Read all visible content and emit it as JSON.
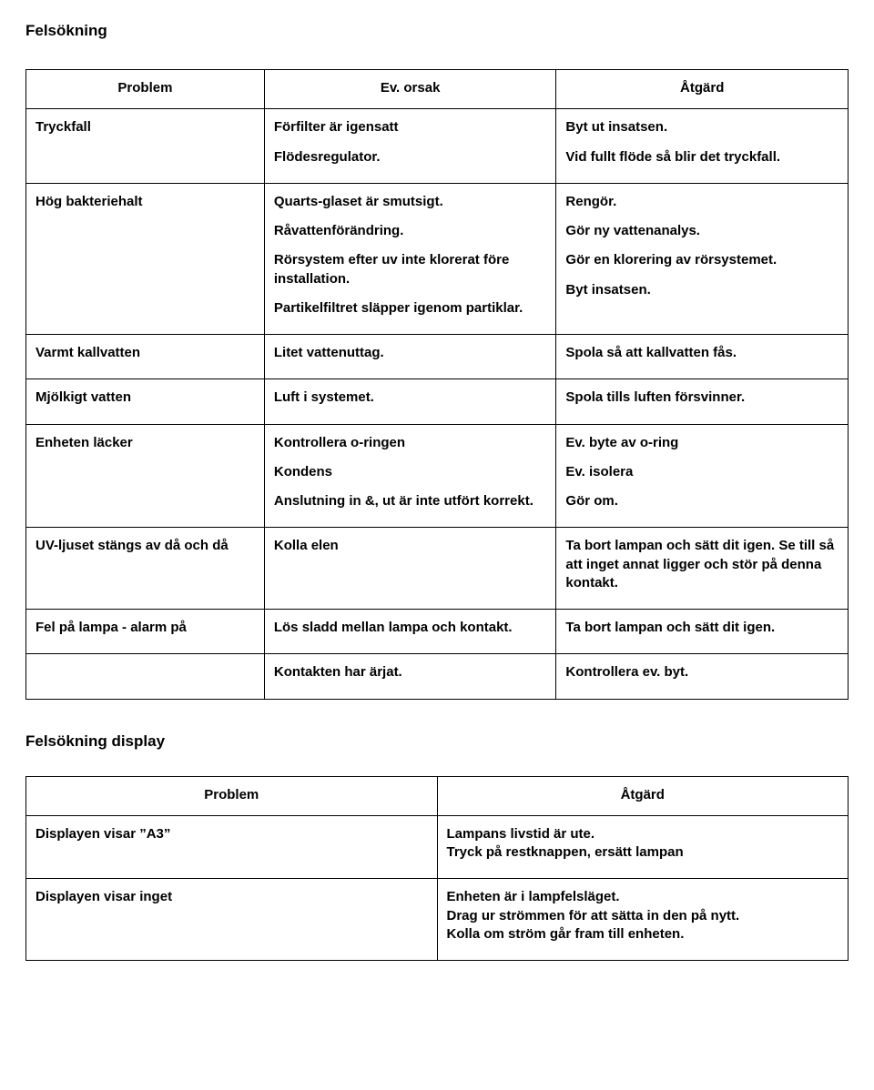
{
  "heading1": "Felsökning",
  "heading2": "Felsökning display",
  "table1": {
    "headers": {
      "problem": "Problem",
      "cause": "Ev. orsak",
      "action": "Åtgärd"
    },
    "rows": [
      {
        "problem": "Tryckfall",
        "cells": [
          {
            "cause": "Förfilter är igensatt",
            "action": "Byt ut insatsen."
          },
          {
            "cause": "Flödesregulator.",
            "action": "Vid fullt flöde så blir det tryckfall."
          }
        ]
      },
      {
        "problem": "Hög bakteriehalt",
        "cells": [
          {
            "cause": "Quarts-glaset är smutsigt.",
            "action": "Rengör."
          },
          {
            "cause": "Råvattenförändring.",
            "action": "Gör ny vattenanalys."
          },
          {
            "cause": "Rörsystem efter uv inte klorerat före installation.",
            "action": "Gör en klorering av rörsystemet."
          },
          {
            "cause": "Partikelfiltret släpper igenom partiklar.",
            "action": "Byt insatsen."
          }
        ]
      },
      {
        "problem": "Varmt kallvatten",
        "cells": [
          {
            "cause": "Litet vattenuttag.",
            "action": "Spola så att kallvatten fås."
          }
        ]
      },
      {
        "problem": "Mjölkigt vatten",
        "cells": [
          {
            "cause": "Luft i systemet.",
            "action": "Spola tills luften försvinner."
          }
        ]
      },
      {
        "problem": "Enheten läcker",
        "cells": [
          {
            "cause": "Kontrollera o-ringen",
            "action": "Ev. byte av o-ring"
          },
          {
            "cause": "Kondens",
            "action": "Ev. isolera"
          },
          {
            "cause": "Anslutning in &, ut är inte utfört korrekt.",
            "action": "Gör om."
          }
        ]
      },
      {
        "problem": "UV-ljuset stängs av då och då",
        "cells": [
          {
            "cause": "Kolla elen",
            "action": "Ta bort lampan och sätt dit igen. Se till så att inget annat ligger och stör på denna kontakt."
          }
        ]
      },
      {
        "problem": "Fel på lampa - alarm på",
        "cells": [
          {
            "cause": "Lös sladd mellan lampa och kontakt.",
            "action": "Ta bort lampan och sätt dit igen."
          }
        ]
      },
      {
        "problem": "",
        "cells": [
          {
            "cause": "Kontakten har ärjat.",
            "action": "Kontrollera ev. byt."
          }
        ]
      }
    ]
  },
  "table2": {
    "headers": {
      "problem": "Problem",
      "action": "Åtgärd"
    },
    "rows": [
      {
        "problem": "Displayen visar  ”A3”",
        "action_lines": [
          "Lampans livstid är ute.",
          "Tryck på restknappen, ersätt lampan"
        ]
      },
      {
        "problem": "Displayen visar inget",
        "action_lines": [
          "Enheten är i lampfelsläget.",
          "Drag ur strömmen för att sätta in den på nytt.",
          "Kolla om ström går fram till enheten."
        ]
      }
    ]
  },
  "style": {
    "font_family": "Arial",
    "font_size_pt": 11,
    "heading_size_pt": 12.5,
    "text_color": "#000000",
    "background_color": "#ffffff",
    "border_color": "#000000"
  }
}
